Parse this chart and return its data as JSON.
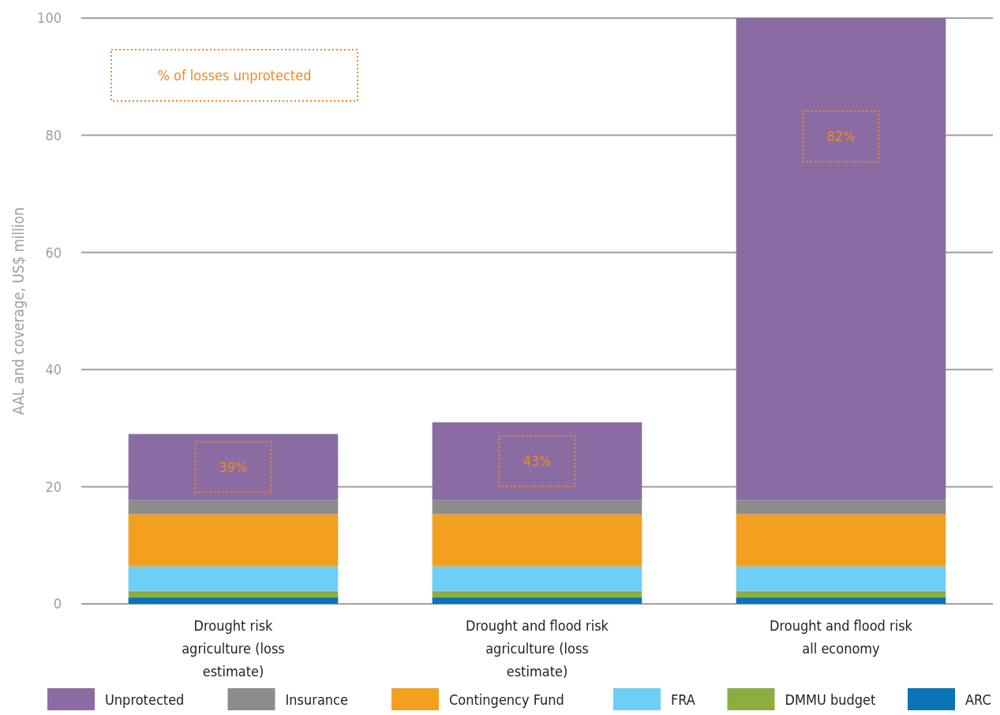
{
  "chart_data": {
    "type": "bar",
    "stacked": true,
    "ylabel": "AAL and coverage, US$ million",
    "categories": [
      "Drought risk agriculture (loss estimate)",
      "Drought and flood risk agriculture (loss estimate)",
      "Drought and flood risk all economy"
    ],
    "series": [
      {
        "name": "ARC",
        "color": "#0a74b6",
        "values": [
          1.1,
          1.1,
          1.1
        ]
      },
      {
        "name": "DMMU budget",
        "color": "#8aae3f",
        "values": [
          1.1,
          1.1,
          1.1
        ]
      },
      {
        "name": "FRA",
        "color": "#6dcff6",
        "values": [
          4.2,
          4.2,
          4.2
        ]
      },
      {
        "name": "Contingency Fund",
        "color": "#f3a020",
        "values": [
          8.9,
          8.9,
          8.9
        ]
      },
      {
        "name": "Insurance",
        "color": "#8c8c8c",
        "values": [
          2.4,
          2.4,
          2.4
        ]
      },
      {
        "name": "Unprotected",
        "color": "#8a6ca2",
        "values": [
          11.3,
          13.3,
          82.3
        ]
      }
    ],
    "ylim": [
      0,
      100
    ],
    "yticks": [
      0,
      20,
      40,
      60,
      80,
      100
    ],
    "grid": "y",
    "legend": "bottom",
    "annotations": [
      "% of losses unprotected",
      "39%",
      "43%",
      "82%"
    ]
  }
}
